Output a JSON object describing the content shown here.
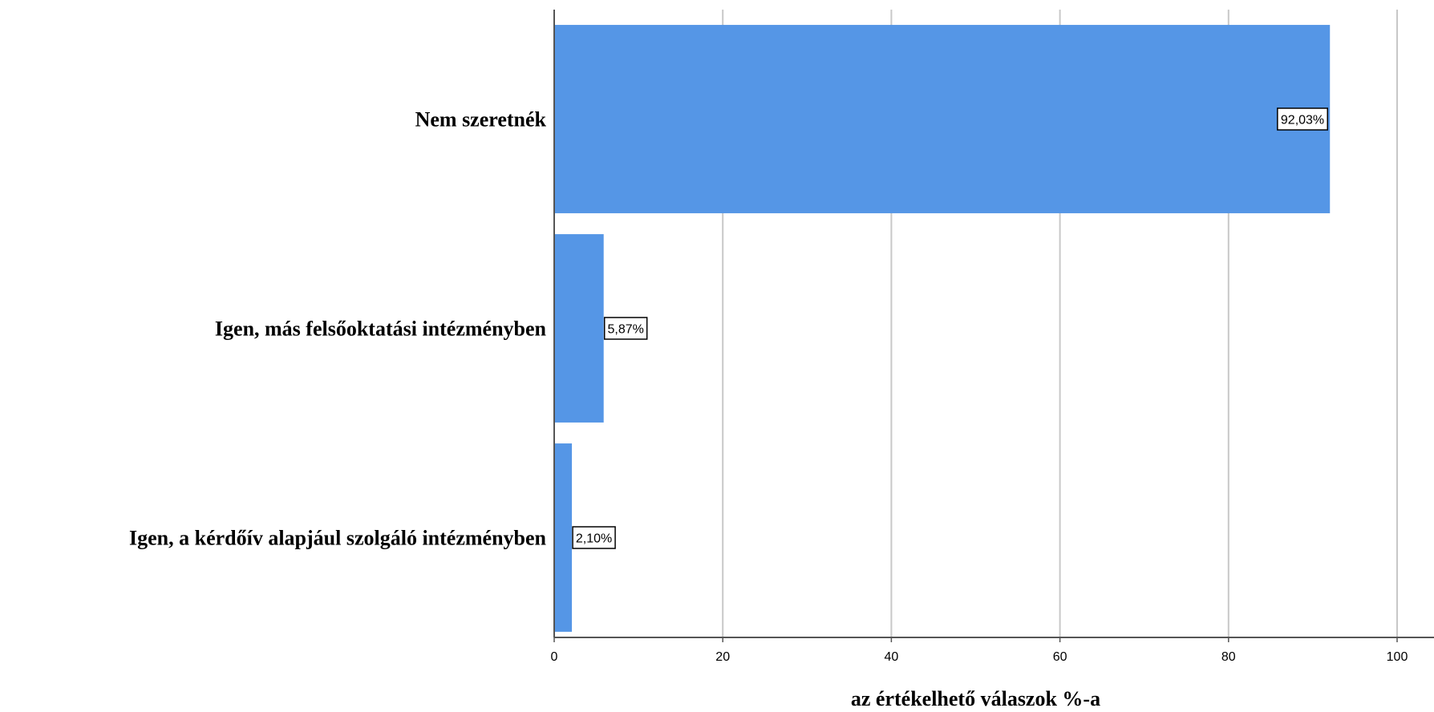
{
  "chart_data": {
    "type": "bar",
    "orientation": "horizontal",
    "categories": [
      "Nem szeretnék",
      "Igen, más felsőoktatási intézményben",
      "Igen, a kérdőív alapjául szolgáló intézményben"
    ],
    "values": [
      92.03,
      5.87,
      2.1
    ],
    "data_labels": [
      "92,03%",
      "5,87%",
      "2,10%"
    ],
    "xlabel": "az értékelhető válaszok %-a",
    "ylabel": "",
    "xlim": [
      0,
      100
    ],
    "xticks": [
      0,
      20,
      40,
      60,
      80,
      100
    ],
    "grid": "vertical",
    "bar_color": "#5596e6"
  }
}
